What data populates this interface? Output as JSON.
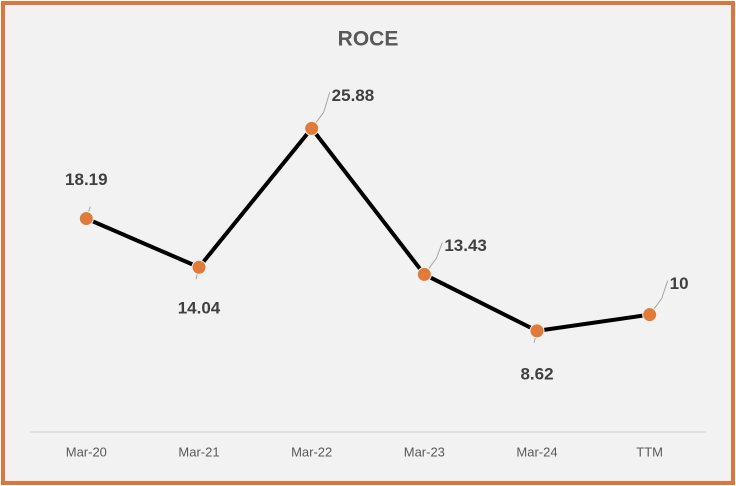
{
  "chart_data": {
    "type": "line",
    "title": "ROCE",
    "categories": [
      "Mar-20",
      "Mar-21",
      "Mar-22",
      "Mar-23",
      "Mar-24",
      "TTM"
    ],
    "series": [
      {
        "name": "ROCE",
        "color": "#e07b39",
        "values": [
          18.19,
          14.04,
          25.88,
          13.43,
          8.62,
          10
        ]
      }
    ],
    "line_color": "#000000",
    "ylim": [
      0,
      30
    ]
  }
}
